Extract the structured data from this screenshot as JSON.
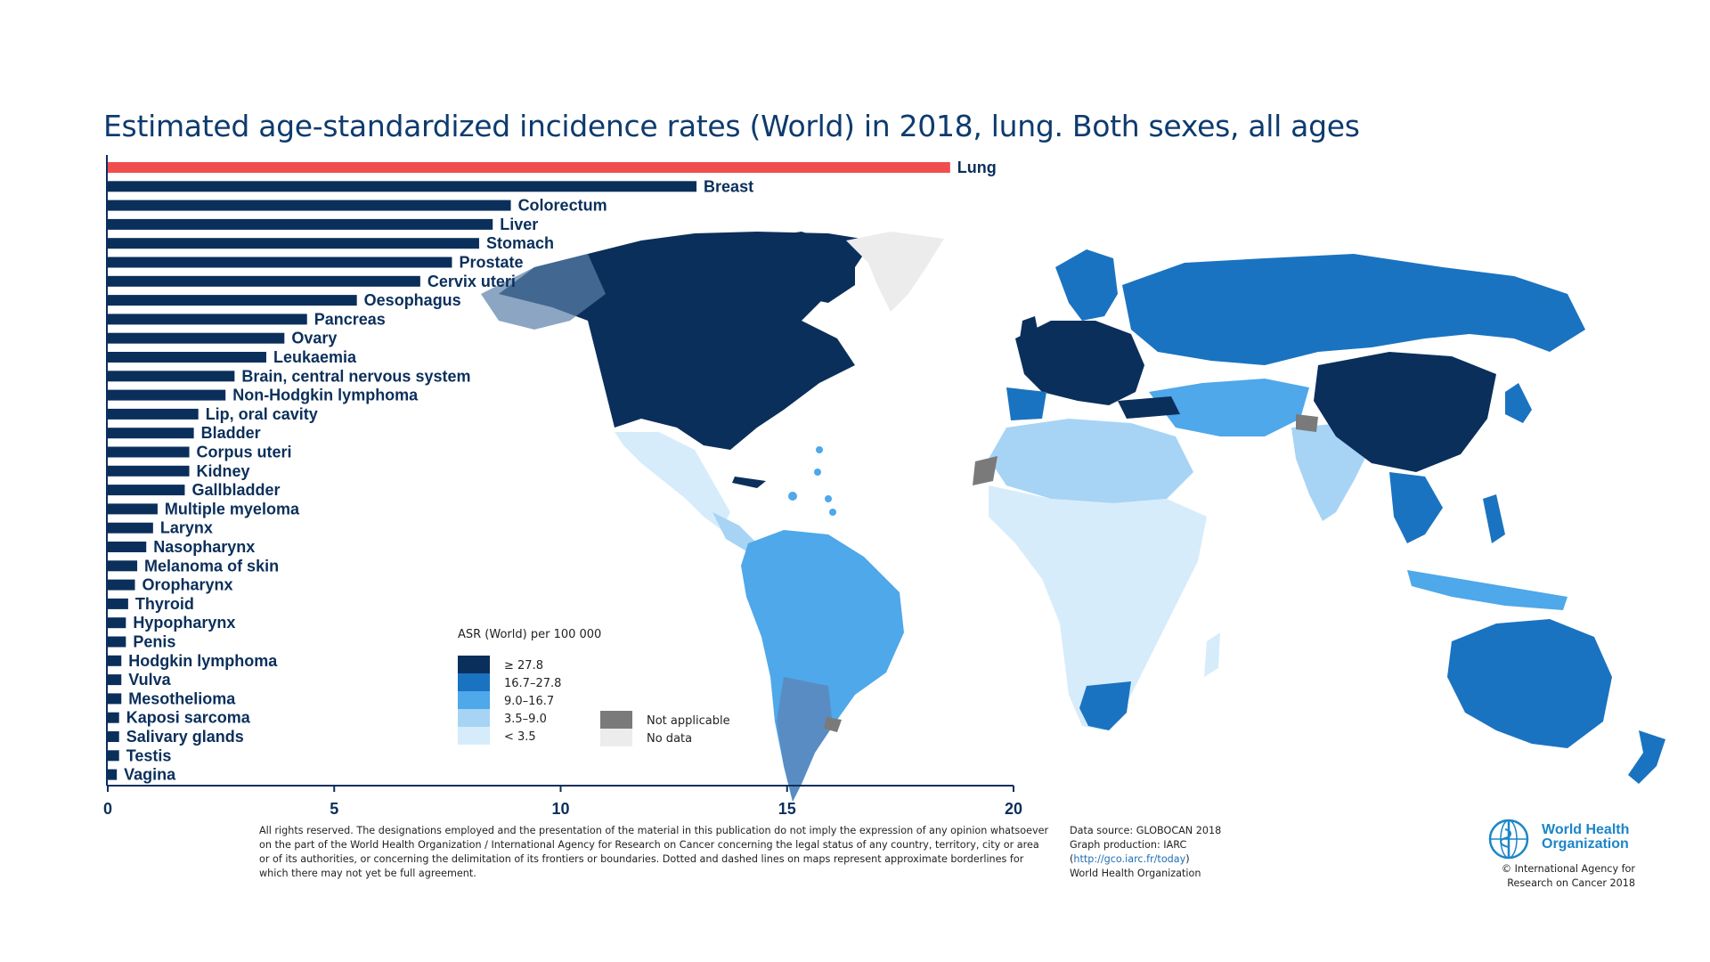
{
  "title": "Estimated age-standardized incidence rates (World) in 2018, lung. Both sexes, all ages",
  "chart_data": {
    "type": "bar",
    "orientation": "horizontal",
    "highlight": "Lung",
    "highlight_color": "#f04e4e",
    "bar_color": "#0b2f5b",
    "categories": [
      "Lung",
      "Breast",
      "Colorectum",
      "Liver",
      "Stomach",
      "Prostate",
      "Cervix uteri",
      "Oesophagus",
      "Pancreas",
      "Ovary",
      "Leukaemia",
      "Brain, central nervous system",
      "Non-Hodgkin lymphoma",
      "Lip, oral cavity",
      "Bladder",
      "Corpus uteri",
      "Kidney",
      "Gallbladder",
      "Multiple myeloma",
      "Larynx",
      "Nasopharynx",
      "Melanoma of skin",
      "Oropharynx",
      "Thyroid",
      "Hypopharynx",
      "Penis",
      "Hodgkin lymphoma",
      "Vulva",
      "Mesothelioma",
      "Kaposi sarcoma",
      "Salivary glands",
      "Testis",
      "Vagina"
    ],
    "values": [
      18.6,
      13.0,
      8.9,
      8.5,
      8.2,
      7.6,
      6.9,
      5.5,
      4.4,
      3.9,
      3.5,
      2.8,
      2.6,
      2.0,
      1.9,
      1.8,
      1.8,
      1.7,
      1.1,
      1.0,
      0.85,
      0.65,
      0.6,
      0.45,
      0.4,
      0.4,
      0.3,
      0.3,
      0.3,
      0.25,
      0.25,
      0.25,
      0.2
    ],
    "xlim": [
      0,
      20
    ],
    "xticks": [
      "0",
      "5",
      "10",
      "15",
      "20"
    ]
  },
  "legend": {
    "title": "ASR (World) per 100 000",
    "items": [
      {
        "label": "≥ 27.8",
        "color": "#0b2f5b"
      },
      {
        "label": "16.7–27.8",
        "color": "#1a73c0"
      },
      {
        "label": "9.0–16.7",
        "color": "#4ea8ea"
      },
      {
        "label": "3.5–9.0",
        "color": "#a7d4f5"
      },
      {
        "label": "< 3.5",
        "color": "#d6ecfb"
      }
    ],
    "extra": [
      {
        "label": "Not applicable",
        "color": "#7a7a7a"
      },
      {
        "label": "No data",
        "color": "#ececec"
      }
    ]
  },
  "disclaimer": "All rights reserved. The designations employed and the presentation of the material in this publication do not imply the expression of any opinion whatsoever on the part of the World Health Organization / International Agency for Research on Cancer concerning the legal status of any country, territory, city or area or of its authorities, or concerning the delimitation of its frontiers or boundaries. Dotted and dashed lines on maps represent approximate borderlines for which there may not yet be full agreement.",
  "source": {
    "line1": "Data source: GLOBOCAN 2018",
    "line2": "Graph production: IARC",
    "link_open": "(",
    "link": "http://gco.iarc.fr/today",
    "link_close": ")",
    "line4": "World Health Organization"
  },
  "logo": {
    "name_line1": "World Health",
    "name_line2": "Organization"
  },
  "copyright": {
    "line1": "© International Agency for",
    "line2": "Research on Cancer 2018"
  }
}
